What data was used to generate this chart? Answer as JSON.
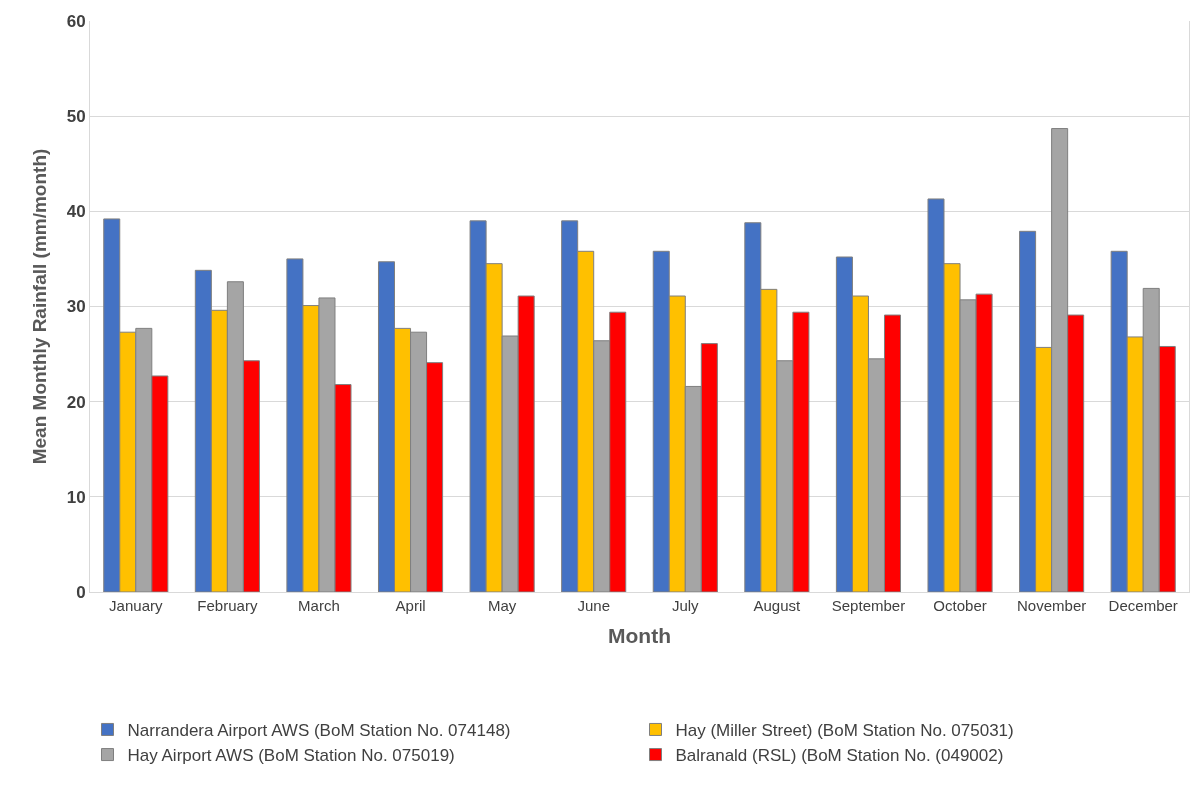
{
  "chart_data": {
    "type": "bar",
    "xlabel": "Month",
    "ylabel": "Mean Monthly Rainfall (mm/month)",
    "categories": [
      "January",
      "February",
      "March",
      "April",
      "May",
      "June",
      "July",
      "August",
      "September",
      "October",
      "November",
      "December"
    ],
    "series": [
      {
        "name": "Narrandera Airport AWS (BoM Station No. 074148)",
        "color": "#4472c4",
        "values": [
          39.2,
          33.8,
          35.0,
          34.7,
          39.0,
          39.0,
          35.8,
          38.8,
          35.2,
          41.3,
          37.9,
          35.8
        ]
      },
      {
        "name": "Hay (Miller Street) (BoM Station No. 075031)",
        "color": "#ffc000",
        "values": [
          27.3,
          29.6,
          30.1,
          27.7,
          34.5,
          35.8,
          31.1,
          31.8,
          31.1,
          34.5,
          25.7,
          26.8
        ]
      },
      {
        "name": "Hay Airport AWS (BoM Station No. 075019)",
        "color": "#a5a5a5",
        "values": [
          27.7,
          32.6,
          30.9,
          27.3,
          26.9,
          26.4,
          21.6,
          24.3,
          24.5,
          30.7,
          48.7,
          31.9
        ]
      },
      {
        "name": "Balranald (RSL) (BoM Station No. (049002)",
        "color": "#ff0000",
        "values": [
          22.7,
          24.3,
          21.8,
          24.1,
          31.1,
          29.4,
          26.1,
          29.4,
          29.1,
          31.3,
          29.1,
          25.8
        ]
      }
    ],
    "ylim": [
      0,
      60
    ],
    "yticks": [
      0,
      10,
      20,
      30,
      40,
      50,
      60
    ],
    "grid": "y",
    "legend": "bottom"
  }
}
